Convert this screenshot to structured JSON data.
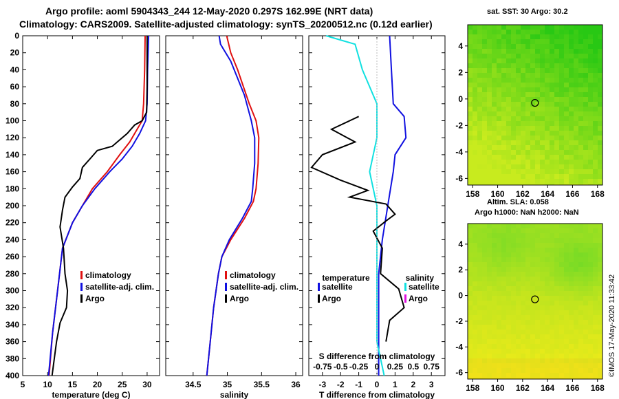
{
  "header": {
    "line1": "Argo profile: aoml 5904343_244 12-May-2020 0.297S 162.99E (NRT data)",
    "line2": "Climatology: CARS2009. Satellite-adjusted climatology: synTS_20200512.nc (0.12d earlier)"
  },
  "colors": {
    "climatology": "#e01010",
    "satellite": "#1010e0",
    "argo": "#000000",
    "argo_s_diff": "#e010e0",
    "sat_s_diff": "#10e0e0"
  },
  "chart_data": [
    {
      "type": "line",
      "title": "",
      "xlabel": "temperature (deg C)",
      "ylabel": "",
      "xlim": [
        5,
        32.5
      ],
      "ylim": [
        400,
        0
      ],
      "xticks": [
        "5",
        "10",
        "15",
        "20",
        "25",
        "30"
      ],
      "yticks": [
        "0",
        "20",
        "40",
        "60",
        "80",
        "100",
        "120",
        "140",
        "160",
        "180",
        "200",
        "220",
        "240",
        "260",
        "280",
        "300",
        "320",
        "340",
        "360",
        "380",
        "400"
      ],
      "legend": [
        "climatology",
        "satellite-adj. clim.",
        "Argo"
      ],
      "series": [
        {
          "name": "climatology",
          "color": "#e01010",
          "points": [
            [
              29.6,
              0
            ],
            [
              29.5,
              40
            ],
            [
              29.3,
              80
            ],
            [
              29.0,
              100
            ],
            [
              28.0,
              110
            ],
            [
              26.5,
              125
            ],
            [
              24.5,
              140
            ],
            [
              22.0,
              160
            ],
            [
              19.0,
              180
            ],
            [
              17.5,
              195
            ],
            [
              15.0,
              220
            ],
            [
              13.0,
              250
            ],
            [
              12.0,
              300
            ],
            [
              11.0,
              350
            ],
            [
              10.3,
              400
            ]
          ]
        },
        {
          "name": "satellite-adj. clim.",
          "color": "#1010e0",
          "points": [
            [
              30.3,
              0
            ],
            [
              30.1,
              40
            ],
            [
              30.0,
              80
            ],
            [
              29.7,
              100
            ],
            [
              28.5,
              115
            ],
            [
              27.0,
              130
            ],
            [
              25.0,
              145
            ],
            [
              22.5,
              160
            ],
            [
              19.5,
              180
            ],
            [
              17.0,
              200
            ],
            [
              15.0,
              220
            ],
            [
              13.0,
              250
            ],
            [
              12.0,
              300
            ],
            [
              11.0,
              350
            ],
            [
              10.2,
              400
            ]
          ]
        },
        {
          "name": "Argo",
          "color": "#000000",
          "points": [
            [
              30.0,
              0
            ],
            [
              30.0,
              60
            ],
            [
              29.9,
              90
            ],
            [
              29.0,
              100
            ],
            [
              27.5,
              105
            ],
            [
              26.0,
              115
            ],
            [
              24.0,
              125
            ],
            [
              23.0,
              130
            ],
            [
              20.0,
              135
            ],
            [
              18.5,
              145
            ],
            [
              17.0,
              155
            ],
            [
              16.5,
              168
            ],
            [
              15.0,
              178
            ],
            [
              13.5,
              190
            ],
            [
              13.0,
              205
            ],
            [
              12.5,
              225
            ],
            [
              13.2,
              250
            ],
            [
              13.5,
              280
            ],
            [
              14.0,
              300
            ],
            [
              13.8,
              320
            ],
            [
              12.5,
              338
            ],
            [
              11.8,
              360
            ],
            [
              10.9,
              400
            ]
          ]
        }
      ]
    },
    {
      "type": "line",
      "title": "",
      "xlabel": "salinity",
      "ylabel": "",
      "xlim": [
        34.1,
        36.1
      ],
      "ylim": [
        400,
        0
      ],
      "xticks": [
        "34.5",
        "35",
        "35.5",
        "36"
      ],
      "legend": [
        "climatology",
        "satellite-adj. clim.",
        "Argo"
      ],
      "series": [
        {
          "name": "climatology",
          "color": "#e01010",
          "points": [
            [
              34.99,
              0
            ],
            [
              35.05,
              20
            ],
            [
              35.15,
              40
            ],
            [
              35.32,
              80
            ],
            [
              35.42,
              100
            ],
            [
              35.46,
              120
            ],
            [
              35.45,
              150
            ],
            [
              35.42,
              180
            ],
            [
              35.38,
              195
            ],
            [
              35.25,
              215
            ],
            [
              35.05,
              240
            ],
            [
              34.92,
              260
            ],
            [
              34.87,
              280
            ],
            [
              34.8,
              320
            ],
            [
              34.75,
              360
            ],
            [
              34.7,
              400
            ]
          ]
        },
        {
          "name": "satellite-adj. clim.",
          "color": "#1010e0",
          "points": [
            [
              34.88,
              0
            ],
            [
              34.9,
              10
            ],
            [
              35.05,
              30
            ],
            [
              35.25,
              70
            ],
            [
              35.35,
              100
            ],
            [
              35.4,
              120
            ],
            [
              35.4,
              150
            ],
            [
              35.37,
              180
            ],
            [
              35.35,
              195
            ],
            [
              35.22,
              215
            ],
            [
              35.03,
              240
            ],
            [
              34.92,
              260
            ],
            [
              34.87,
              280
            ],
            [
              34.8,
              320
            ],
            [
              34.75,
              360
            ],
            [
              34.7,
              400
            ]
          ]
        },
        {
          "name": "Argo",
          "color": "#000000",
          "points": []
        }
      ]
    },
    {
      "type": "line",
      "title": "",
      "xlabel": "T difference from climatology",
      "ylabel": "",
      "xlim": [
        -3.75,
        3.75
      ],
      "ylim": [
        400,
        0
      ],
      "xticks": [
        "-3",
        "-2",
        "-1",
        "0",
        "1",
        "2",
        "3"
      ],
      "top_axis_title": "S difference from climatology",
      "top_xticks": [
        "-0.75",
        "-0.5",
        "-0.25",
        "0",
        "0.25",
        "0.5",
        "0.75"
      ],
      "legend_temperature_title": "temperature",
      "legend_salinity_title": "salinity",
      "legend_temperature": [
        "satellite",
        "Argo"
      ],
      "legend_salinity": [
        "satellite",
        "Argo"
      ],
      "series": [
        {
          "name": "T satellite",
          "color": "#1010e0",
          "points": [
            [
              0.7,
              0
            ],
            [
              0.8,
              40
            ],
            [
              0.9,
              80
            ],
            [
              1.5,
              95
            ],
            [
              1.6,
              120
            ],
            [
              1.0,
              140
            ],
            [
              0.9,
              160
            ],
            [
              0.6,
              200
            ],
            [
              0.3,
              240
            ],
            [
              0.1,
              280
            ],
            [
              0.1,
              320
            ],
            [
              0.1,
              360
            ],
            [
              0.1,
              400
            ]
          ]
        },
        {
          "name": "S satellite",
          "color": "#10e0e0",
          "points": [
            [
              -0.7,
              0
            ],
            [
              -0.3,
              10
            ],
            [
              -0.2,
              40
            ],
            [
              0,
              80
            ],
            [
              0,
              120
            ],
            [
              -0.1,
              160
            ],
            [
              0,
              200
            ],
            [
              0,
              280
            ],
            [
              0,
              320
            ],
            [
              0,
              360
            ],
            [
              0.1,
              400
            ]
          ]
        },
        {
          "name": "T Argo",
          "color": "#000000",
          "points": [
            [
              -1,
              95
            ],
            [
              -2.5,
              110
            ],
            [
              -1.2,
              125
            ],
            [
              -3,
              140
            ],
            [
              -3.6,
              155
            ],
            [
              -2,
              170
            ],
            [
              -0.5,
              182
            ],
            [
              -1.5,
              190
            ],
            [
              0.5,
              198
            ],
            [
              1,
              210
            ],
            [
              0.5,
              218
            ],
            [
              -0.2,
              230
            ],
            [
              0.3,
              250
            ],
            [
              0.2,
              280
            ],
            [
              1.2,
              298
            ],
            [
              1.5,
              320
            ],
            [
              0.7,
              335
            ],
            [
              0.5,
              360
            ]
          ]
        },
        {
          "name": "S Argo",
          "color": "#e010e0",
          "points": []
        }
      ]
    },
    {
      "type": "heatmap",
      "title": "sat. SST: 30 Argo: 30.2",
      "xticks": [
        "158",
        "160",
        "162",
        "164",
        "166",
        "168"
      ],
      "yticks": [
        "4",
        "2",
        "0",
        "-2",
        "-4",
        "-6"
      ]
    },
    {
      "type": "heatmap",
      "title": "Altim. SLA: 0.058",
      "subtitle": "Argo h1000: NaN h2000: NaN",
      "xticks": [
        "158",
        "160",
        "162",
        "164",
        "166",
        "168"
      ],
      "yticks": [
        "4",
        "2",
        "0",
        "-2",
        "-4",
        "-6"
      ]
    }
  ],
  "footer": {
    "imos_stamp": "©IMOS 17-May-2020 11:33:42"
  }
}
